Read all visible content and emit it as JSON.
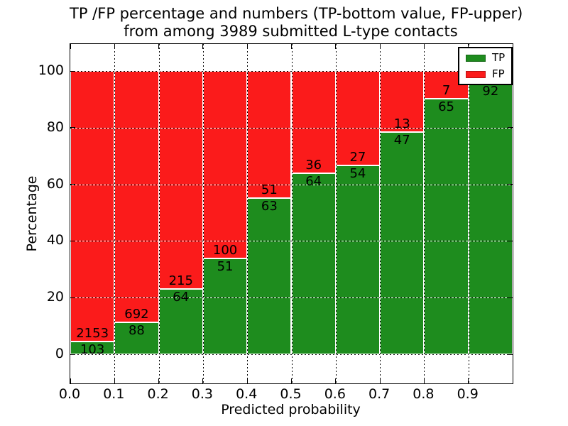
{
  "chart_data": {
    "type": "bar",
    "stacked": true,
    "title_line1": "TP /FP percentage and numbers (TP-bottom value, FP-upper)",
    "title_line2": "from among 3989 submitted L-type contacts",
    "xlabel": "Predicted probability",
    "ylabel": "Percentage",
    "xlim": [
      0.0,
      1.0
    ],
    "ylim": [
      -10.3,
      109.5
    ],
    "x_tick_labels": [
      "0.0",
      "0.1",
      "0.2",
      "0.3",
      "0.4",
      "0.5",
      "0.6",
      "0.7",
      "0.8",
      "0.9"
    ],
    "y_tick_values": [
      0,
      20,
      40,
      60,
      80,
      100
    ],
    "y_tick_labels": [
      "0",
      "20",
      "40",
      "60",
      "80",
      "100"
    ],
    "grid": true,
    "legend": {
      "position": "upper right",
      "entries": [
        {
          "label": "TP",
          "color": "#1e8c1e"
        },
        {
          "label": "FP",
          "color": "#fb1b1b"
        }
      ]
    },
    "categories": [
      "0.0-0.1",
      "0.1-0.2",
      "0.2-0.3",
      "0.3-0.4",
      "0.4-0.5",
      "0.5-0.6",
      "0.6-0.7",
      "0.7-0.8",
      "0.8-0.9",
      "0.9-1.0"
    ],
    "bars": [
      {
        "bin_start": 0.0,
        "tp_count": 103,
        "fp_count": 2153,
        "tp_pct": 4.57
      },
      {
        "bin_start": 0.1,
        "tp_count": 88,
        "fp_count": 692,
        "tp_pct": 11.28
      },
      {
        "bin_start": 0.2,
        "tp_count": 64,
        "fp_count": 215,
        "tp_pct": 22.94
      },
      {
        "bin_start": 0.3,
        "tp_count": 51,
        "fp_count": 100,
        "tp_pct": 33.77
      },
      {
        "bin_start": 0.4,
        "tp_count": 63,
        "fp_count": 51,
        "tp_pct": 55.26
      },
      {
        "bin_start": 0.5,
        "tp_count": 64,
        "fp_count": 36,
        "tp_pct": 64.0
      },
      {
        "bin_start": 0.6,
        "tp_count": 54,
        "fp_count": 27,
        "tp_pct": 66.67
      },
      {
        "bin_start": 0.7,
        "tp_count": 47,
        "fp_count": 13,
        "tp_pct": 78.33
      },
      {
        "bin_start": 0.8,
        "tp_count": 65,
        "fp_count": 7,
        "tp_pct": 90.28
      },
      {
        "bin_start": 0.9,
        "tp_count": 92,
        "fp_count": null,
        "tp_pct": 95.83
      }
    ],
    "colors": {
      "tp": "#1e8c1e",
      "fp": "#fb1b1b",
      "frame": "#000000",
      "grid_dot": "#000000",
      "grid_base": "#ffffff",
      "text": "#000000",
      "background": "#ffffff"
    }
  }
}
